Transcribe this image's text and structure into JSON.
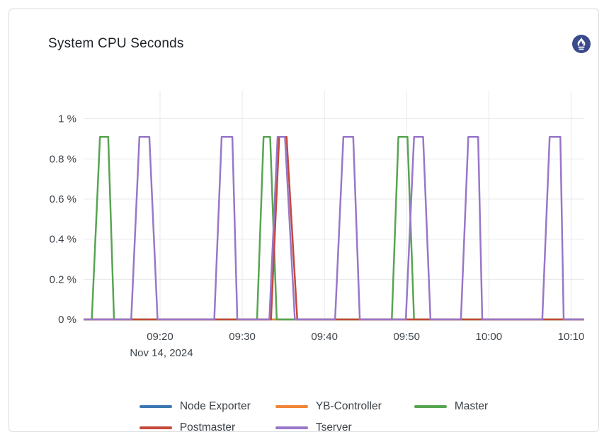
{
  "panel": {
    "title": "System CPU Seconds",
    "logo": "prometheus-icon",
    "logo_color": "#3b4a8b"
  },
  "chart_data": {
    "type": "line",
    "title": "System CPU Seconds",
    "xlabel": "",
    "ylabel": "",
    "grid": true,
    "legend_position": "bottom",
    "x_unit": "minutes since midnight (shown as HH:MM)",
    "y_unit": "%",
    "xlim": [
      550.7,
      611.6
    ],
    "ylim": [
      0,
      1.14
    ],
    "peak_value_pct": 0.91,
    "x_axis": {
      "date_label": "Nov 14, 2024",
      "ticks": [
        {
          "t": 560,
          "label": "09:20"
        },
        {
          "t": 570,
          "label": "09:30"
        },
        {
          "t": 580,
          "label": "09:40"
        },
        {
          "t": 590,
          "label": "09:50"
        },
        {
          "t": 600,
          "label": "10:00"
        },
        {
          "t": 610,
          "label": "10:10"
        }
      ]
    },
    "y_axis": {
      "ticks": [
        {
          "v": 0,
          "label": "0 %"
        },
        {
          "v": 0.2,
          "label": "0.2 %"
        },
        {
          "v": 0.4,
          "label": "0.4 %"
        },
        {
          "v": 0.6,
          "label": "0.6 %"
        },
        {
          "v": 0.8,
          "label": "0.8 %"
        },
        {
          "v": 1,
          "label": "1 %"
        }
      ]
    },
    "grid_color": "#e8e8ea",
    "series": [
      {
        "name": "Node Exporter",
        "color": "#3d78b3",
        "points": [
          [
            550.7,
            0
          ],
          [
            611.6,
            0
          ]
        ]
      },
      {
        "name": "YB-Controller",
        "color": "#f08636",
        "points": [
          [
            550.7,
            0
          ],
          [
            611.6,
            0
          ]
        ]
      },
      {
        "name": "Master",
        "color": "#58a551",
        "points": [
          [
            550.7,
            0
          ],
          [
            551.7,
            0
          ],
          [
            552.7,
            0.91
          ],
          [
            553.7,
            0.91
          ],
          [
            554.4,
            0
          ],
          [
            571.8,
            0
          ],
          [
            572.6,
            0.91
          ],
          [
            573.4,
            0.91
          ],
          [
            574.2,
            0
          ],
          [
            588.2,
            0
          ],
          [
            589.0,
            0.91
          ],
          [
            590.1,
            0.91
          ],
          [
            590.9,
            0
          ],
          [
            611.6,
            0
          ]
        ]
      },
      {
        "name": "Postmaster",
        "color": "#c5483a",
        "points": [
          [
            550.7,
            0
          ],
          [
            573.5,
            0
          ],
          [
            574.5,
            0.91
          ],
          [
            575.4,
            0.91
          ],
          [
            576.7,
            0
          ],
          [
            611.6,
            0
          ]
        ]
      },
      {
        "name": "Tserver",
        "color": "#9877c9",
        "points": [
          [
            550.7,
            0
          ],
          [
            556.5,
            0
          ],
          [
            557.5,
            0.91
          ],
          [
            558.7,
            0.91
          ],
          [
            559.7,
            0
          ],
          [
            566.6,
            0
          ],
          [
            567.5,
            0.91
          ],
          [
            568.8,
            0.91
          ],
          [
            569.4,
            0
          ],
          [
            573.3,
            0
          ],
          [
            574.3,
            0.91
          ],
          [
            575.2,
            0.91
          ],
          [
            576.4,
            0
          ],
          [
            581.3,
            0
          ],
          [
            582.3,
            0.91
          ],
          [
            583.5,
            0.91
          ],
          [
            584.3,
            0
          ],
          [
            589.9,
            0
          ],
          [
            590.9,
            0.91
          ],
          [
            592.0,
            0.91
          ],
          [
            592.9,
            0
          ],
          [
            596.6,
            0
          ],
          [
            597.5,
            0.91
          ],
          [
            598.7,
            0.91
          ],
          [
            599.2,
            0
          ],
          [
            606.5,
            0
          ],
          [
            607.4,
            0.91
          ],
          [
            608.7,
            0.91
          ],
          [
            609.1,
            0
          ],
          [
            611.6,
            0
          ]
        ]
      }
    ]
  }
}
